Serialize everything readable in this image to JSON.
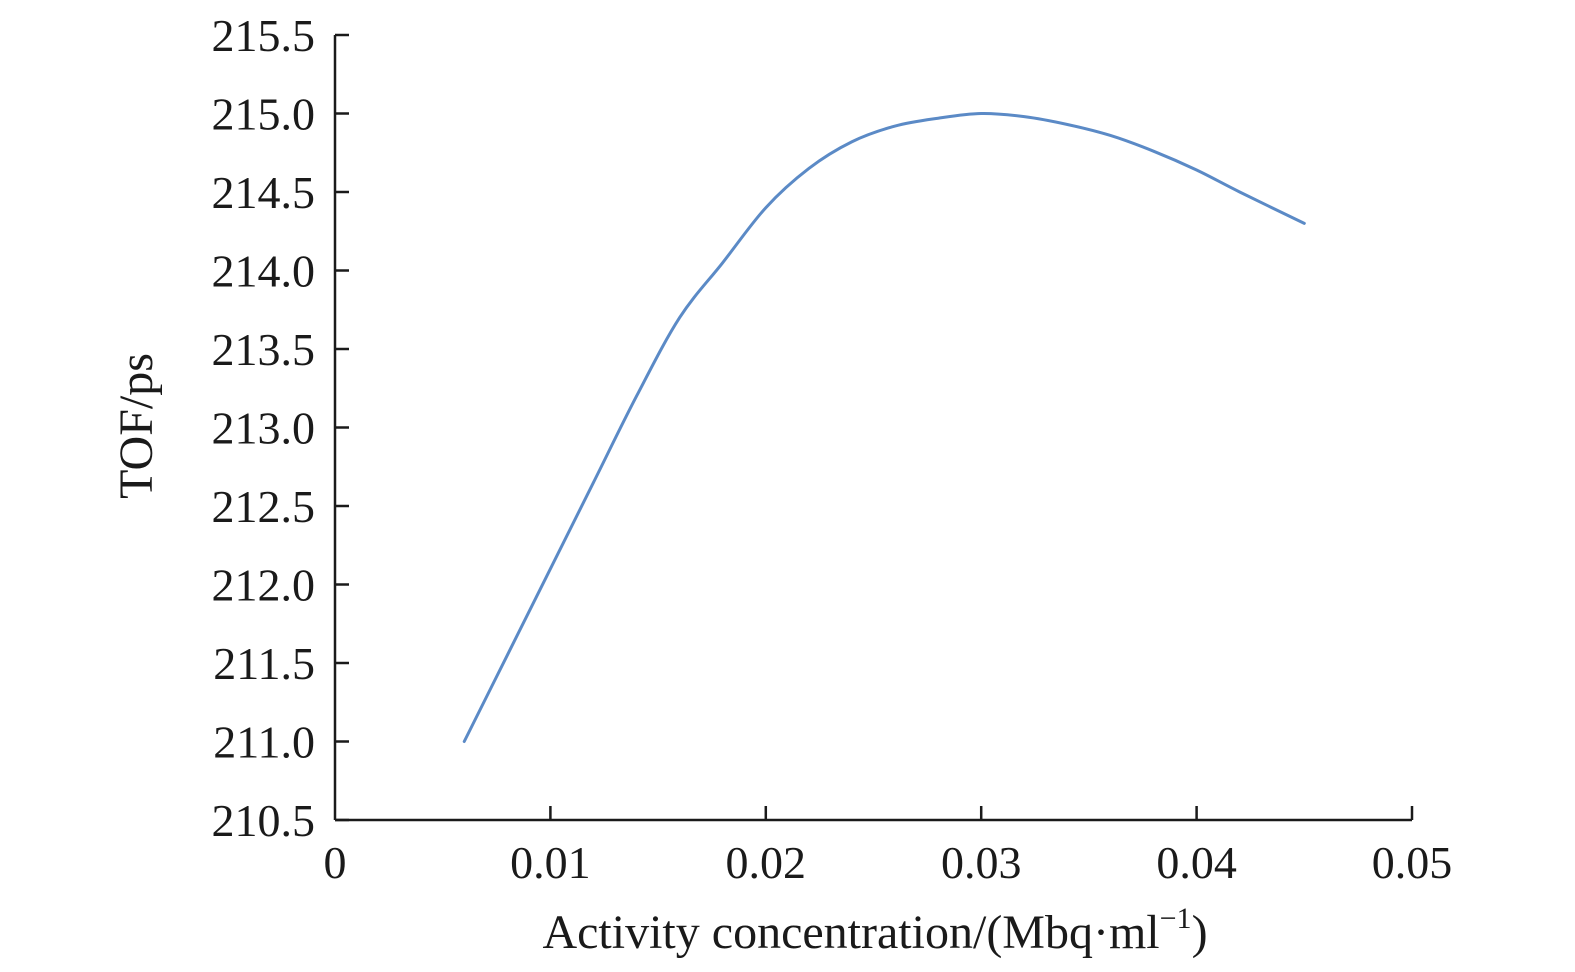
{
  "chart_data": {
    "type": "line",
    "title": "",
    "xlabel": "Activity concentration/(Mbq·ml",
    "xlabel_sup": "−1",
    "xlabel_close": ")",
    "ylabel": "TOF/ps",
    "xlim": [
      0,
      0.05
    ],
    "ylim": [
      210.5,
      215.5
    ],
    "x_ticks": [
      0,
      0.01,
      0.02,
      0.03,
      0.04,
      0.05
    ],
    "x_tick_labels": [
      "0",
      "0.01",
      "0.02",
      "0.03",
      "0.04",
      "0.05"
    ],
    "y_ticks": [
      210.5,
      211.0,
      211.5,
      212.0,
      212.5,
      213.0,
      213.5,
      214.0,
      214.5,
      215.0,
      215.5
    ],
    "y_tick_labels": [
      "210.5",
      "211.0",
      "211.5",
      "212.0",
      "212.5",
      "213.0",
      "213.5",
      "214.0",
      "214.5",
      "215.0",
      "215.5"
    ],
    "grid": false,
    "series": [
      {
        "name": "TOF",
        "color": "#5b8ac6",
        "x": [
          0.006,
          0.008,
          0.01,
          0.012,
          0.014,
          0.016,
          0.018,
          0.02,
          0.022,
          0.024,
          0.026,
          0.028,
          0.03,
          0.032,
          0.034,
          0.036,
          0.038,
          0.04,
          0.042,
          0.045
        ],
        "y": [
          211.0,
          211.55,
          212.1,
          212.65,
          213.2,
          213.7,
          214.05,
          214.4,
          214.65,
          214.82,
          214.92,
          214.97,
          215.0,
          214.98,
          214.93,
          214.86,
          214.76,
          214.64,
          214.5,
          214.3
        ]
      }
    ]
  }
}
